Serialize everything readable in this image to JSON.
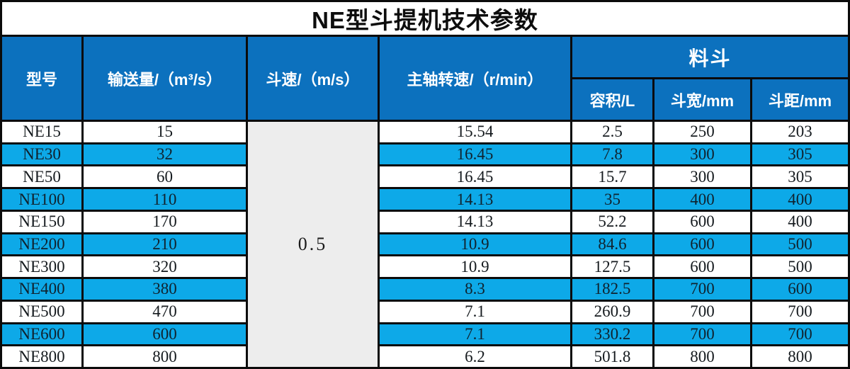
{
  "title": "NE型斗提机技术参数",
  "header": {
    "model": "型号",
    "capacity": "输送量/（m³/s）",
    "bucket_speed": "斗速/（m/s）",
    "shaft_speed": "主轴转速/（r/min）",
    "bucket_group": "料斗",
    "volume": "容积/L",
    "bucket_width": "斗宽/mm",
    "bucket_pitch": "斗距/mm"
  },
  "bucket_speed_shared_value": "0.5",
  "rows": [
    {
      "model": "NE15",
      "capacity": "15",
      "shaft_speed": "15.54",
      "volume": "2.5",
      "bucket_width": "250",
      "bucket_pitch": "203"
    },
    {
      "model": "NE30",
      "capacity": "32",
      "shaft_speed": "16.45",
      "volume": "7.8",
      "bucket_width": "300",
      "bucket_pitch": "305"
    },
    {
      "model": "NE50",
      "capacity": "60",
      "shaft_speed": "16.45",
      "volume": "15.7",
      "bucket_width": "300",
      "bucket_pitch": "305"
    },
    {
      "model": "NE100",
      "capacity": "110",
      "shaft_speed": "14.13",
      "volume": "35",
      "bucket_width": "400",
      "bucket_pitch": "400"
    },
    {
      "model": "NE150",
      "capacity": "170",
      "shaft_speed": "14.13",
      "volume": "52.2",
      "bucket_width": "600",
      "bucket_pitch": "400"
    },
    {
      "model": "NE200",
      "capacity": "210",
      "shaft_speed": "10.9",
      "volume": "84.6",
      "bucket_width": "600",
      "bucket_pitch": "500"
    },
    {
      "model": "NE300",
      "capacity": "320",
      "shaft_speed": "10.9",
      "volume": "127.5",
      "bucket_width": "600",
      "bucket_pitch": "500"
    },
    {
      "model": "NE400",
      "capacity": "380",
      "shaft_speed": "8.3",
      "volume": "182.5",
      "bucket_width": "700",
      "bucket_pitch": "600"
    },
    {
      "model": "NE500",
      "capacity": "470",
      "shaft_speed": "7.1",
      "volume": "260.9",
      "bucket_width": "700",
      "bucket_pitch": "700"
    },
    {
      "model": "NE600",
      "capacity": "600",
      "shaft_speed": "7.1",
      "volume": "330.2",
      "bucket_width": "700",
      "bucket_pitch": "700"
    },
    {
      "model": "NE800",
      "capacity": "800",
      "shaft_speed": "6.2",
      "volume": "501.8",
      "bucket_width": "800",
      "bucket_pitch": "800"
    }
  ],
  "colors": {
    "header_blue": "#0c71be",
    "row_blue": "#0da9e8",
    "merged_gray": "#ededed",
    "gridline_black": "#0b0b0b"
  }
}
